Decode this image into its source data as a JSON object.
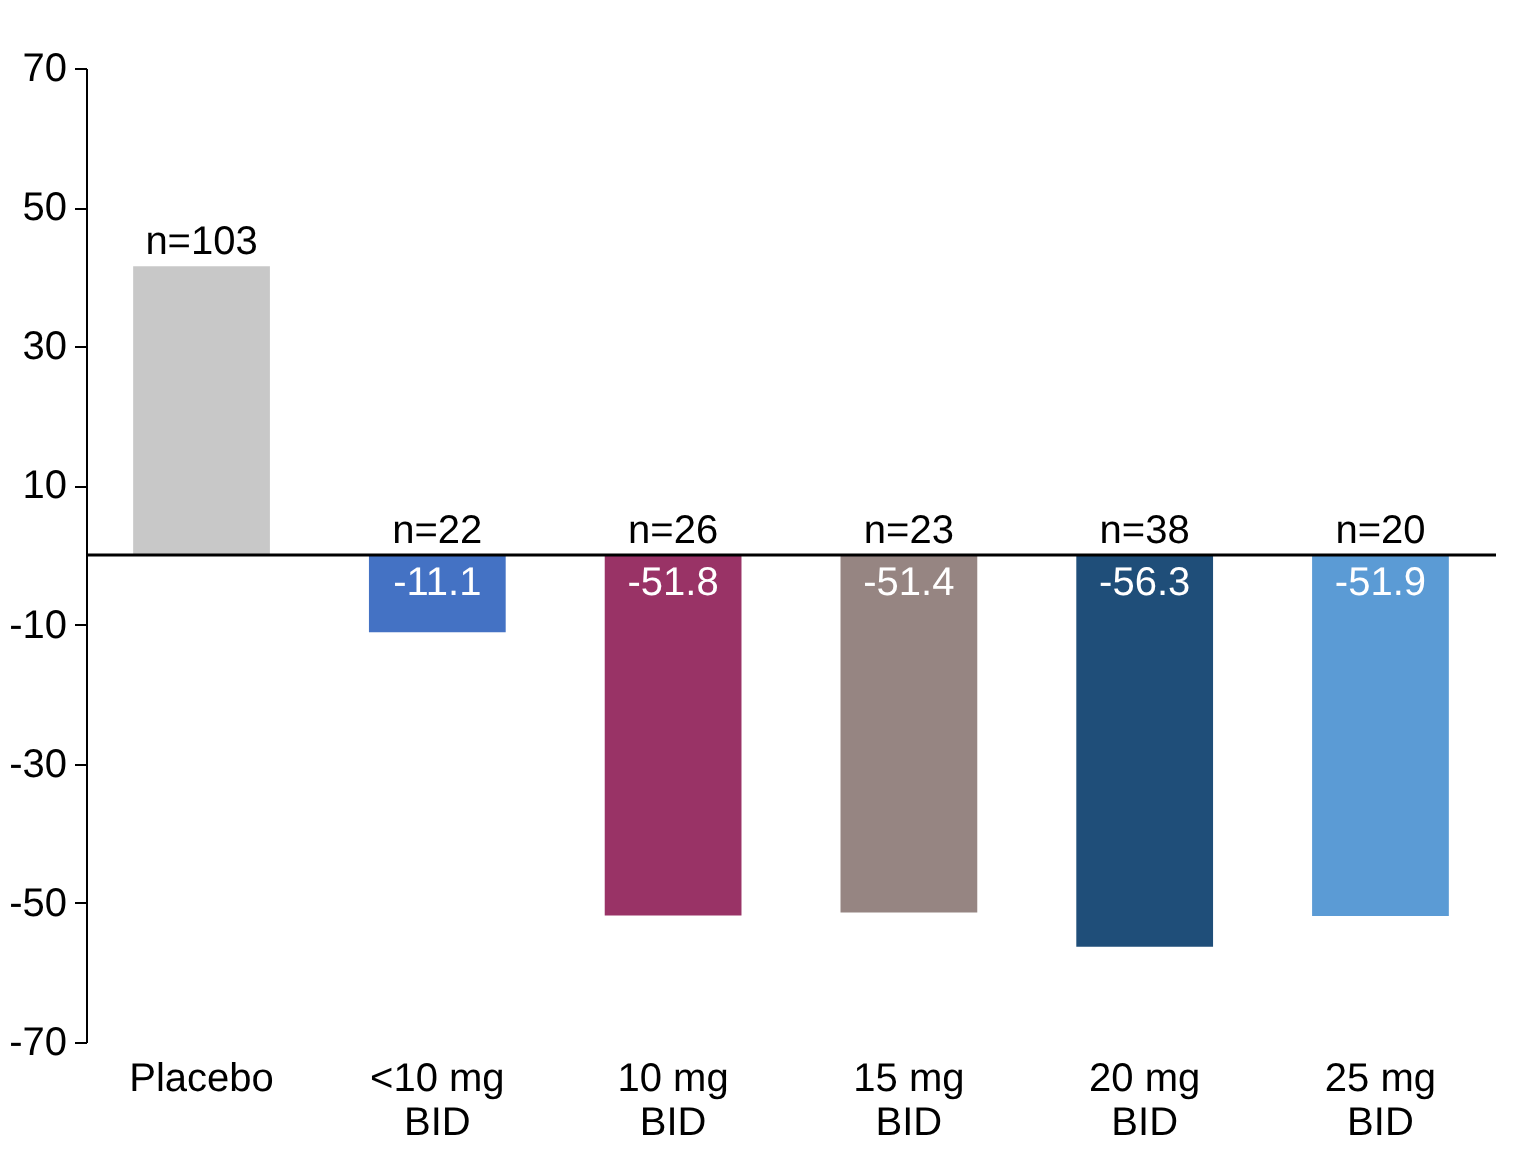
{
  "chart_data": {
    "type": "bar",
    "categories": [
      "Placebo",
      "<10 mg BID",
      "10 mg BID",
      "15 mg BID",
      "20 mg BID",
      "25 mg BID"
    ],
    "values": [
      41.5,
      -11.1,
      -51.8,
      -51.4,
      -56.3,
      -51.9
    ],
    "colors": [
      "#c8c8c8",
      "#4472c4",
      "#993366",
      "#968582",
      "#1f4e79",
      "#5b9bd5"
    ],
    "value_labels": [
      null,
      "-11.1",
      "-51.8",
      "-51.4",
      "-56.3",
      "-51.9"
    ],
    "annotations": [
      "n=103",
      "n=22",
      "n=26",
      "n=23",
      "n=38",
      "n=20"
    ],
    "ylim": [
      -70,
      70
    ],
    "yticks": [
      -70,
      -50,
      -30,
      -10,
      10,
      30,
      50,
      70
    ],
    "grid": false,
    "legend": false
  }
}
